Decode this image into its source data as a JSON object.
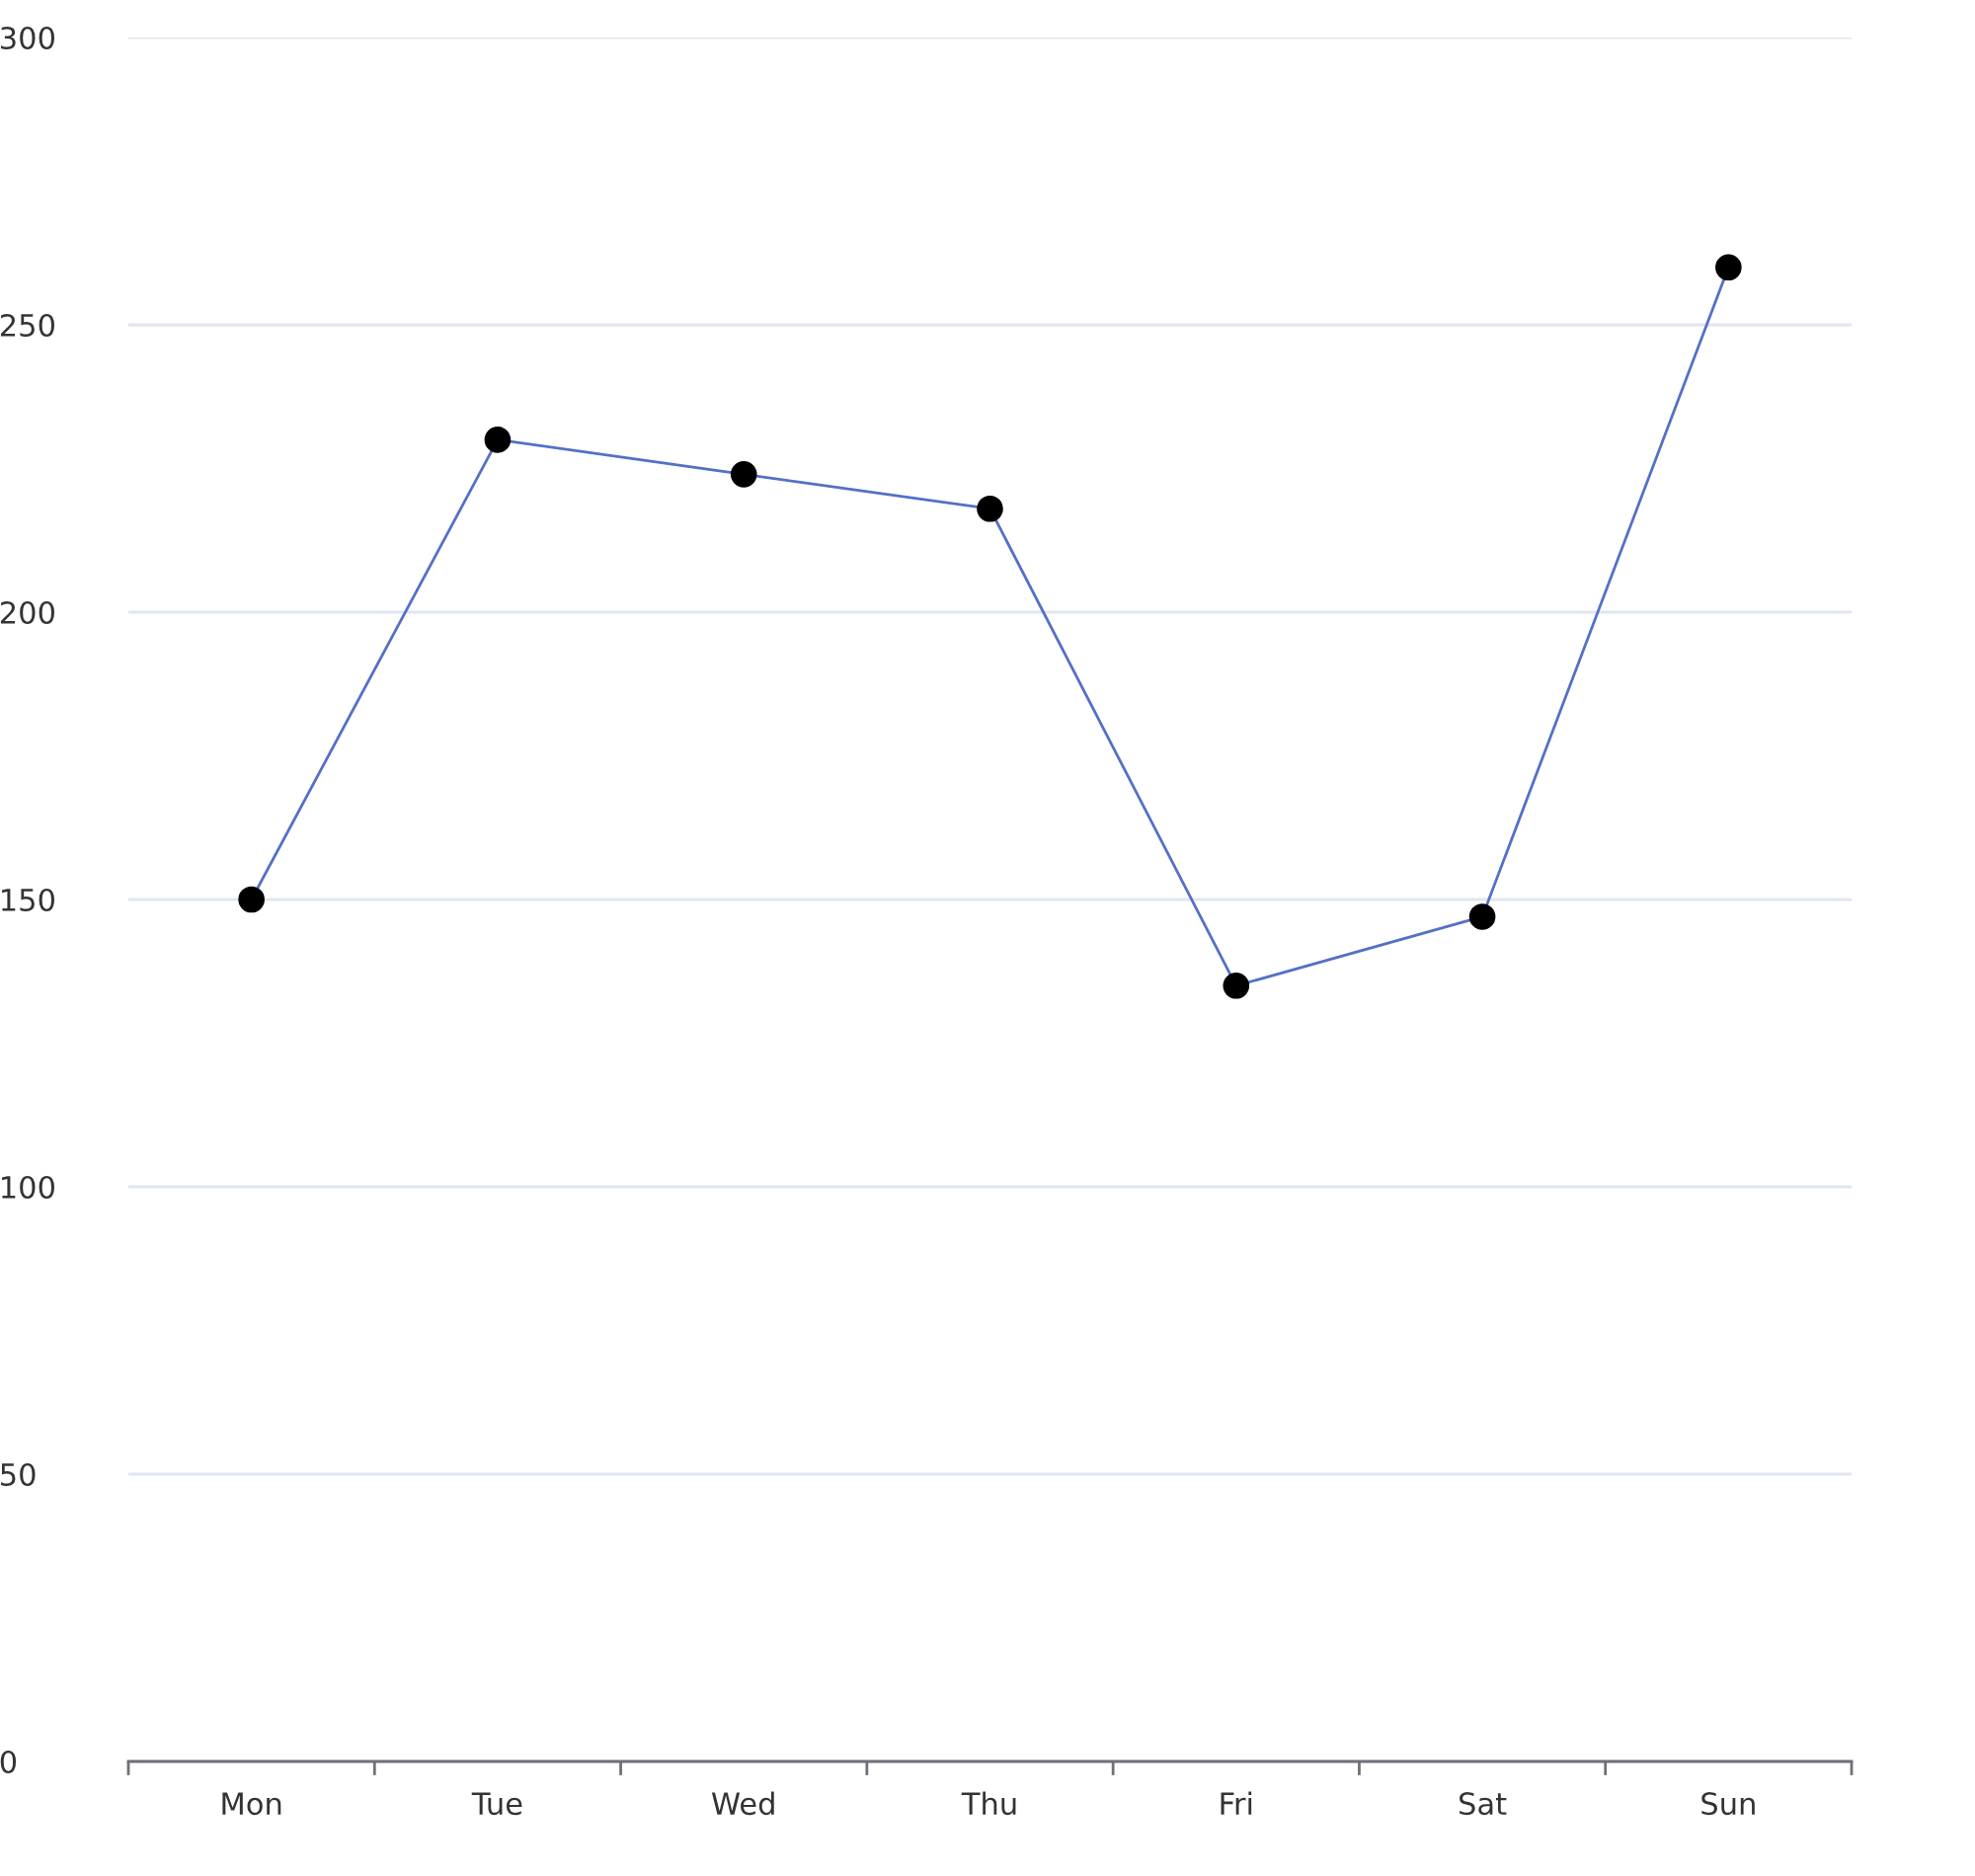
{
  "chart_data": {
    "type": "line",
    "categories": [
      "Mon",
      "Tue",
      "Wed",
      "Thu",
      "Fri",
      "Sat",
      "Sun"
    ],
    "series": [
      {
        "color": "#5470c6",
        "colors": [
          "#000000",
          "#000000",
          "#000000",
          "#000000",
          "#000000",
          "#000000",
          "#000000"
        ],
        "values": [
          150,
          230,
          224,
          218,
          135,
          147,
          260
        ]
      }
    ],
    "ylim": [
      0,
      300
    ],
    "yticks": [
      0,
      50,
      100,
      150,
      200,
      250,
      300
    ],
    "grid": "y",
    "marker": "circle",
    "line_style": "solid"
  }
}
